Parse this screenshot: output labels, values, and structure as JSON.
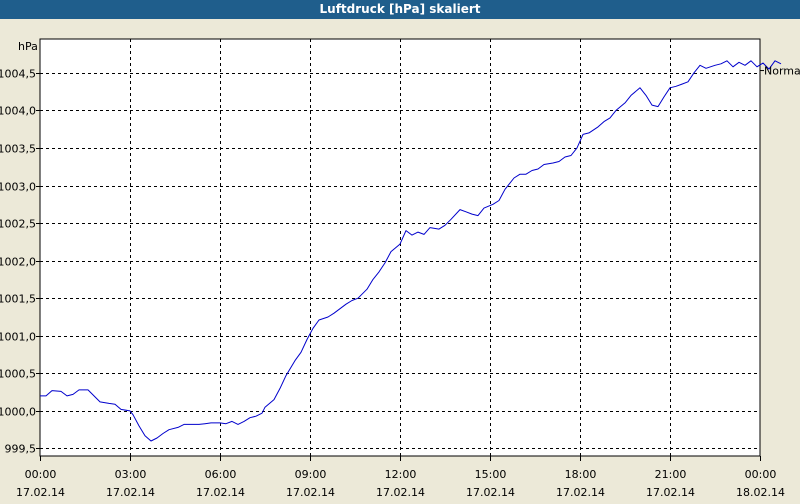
{
  "window": {
    "title": "Luftdruck [hPa] skaliert"
  },
  "colors": {
    "titlebar": "#1f5e8c",
    "line": "#0000cc",
    "grid": "#000000",
    "background": "#ece9d8"
  },
  "chart_data": {
    "type": "line",
    "title": "Luftdruck [hPa] skaliert",
    "ylabel": "hPa",
    "xlabel": "",
    "ylim": [
      999.4,
      1004.95
    ],
    "xlim": [
      0,
      24
    ],
    "grid": true,
    "y_ticks": [
      {
        "value": 999.5,
        "label": "999,5"
      },
      {
        "value": 1000.0,
        "label": "1000,0"
      },
      {
        "value": 1000.5,
        "label": "1000,5"
      },
      {
        "value": 1001.0,
        "label": "1001,0"
      },
      {
        "value": 1001.5,
        "label": "1001,5"
      },
      {
        "value": 1002.0,
        "label": "1002,0"
      },
      {
        "value": 1002.5,
        "label": "1002,5"
      },
      {
        "value": 1003.0,
        "label": "1003,0"
      },
      {
        "value": 1003.5,
        "label": "1003,5"
      },
      {
        "value": 1004.0,
        "label": "1004,0"
      },
      {
        "value": 1004.5,
        "label": "1004,5"
      }
    ],
    "x_ticks": [
      {
        "value": 0,
        "time": "00:00",
        "date": "17.02.14"
      },
      {
        "value": 3,
        "time": "03:00",
        "date": "17.02.14"
      },
      {
        "value": 6,
        "time": "06:00",
        "date": "17.02.14"
      },
      {
        "value": 9,
        "time": "09:00",
        "date": "17.02.14"
      },
      {
        "value": 12,
        "time": "12:00",
        "date": "17.02.14"
      },
      {
        "value": 15,
        "time": "15:00",
        "date": "17.02.14"
      },
      {
        "value": 18,
        "time": "18:00",
        "date": "17.02.14"
      },
      {
        "value": 21,
        "time": "21:00",
        "date": "17.02.14"
      },
      {
        "value": 24,
        "time": "00:00",
        "date": "18.02.14"
      }
    ],
    "series": [
      {
        "label": "Normal",
        "points": [
          [
            0.0,
            1000.2
          ],
          [
            0.2,
            1000.2
          ],
          [
            0.4,
            1000.27
          ],
          [
            0.7,
            1000.26
          ],
          [
            0.9,
            1000.2
          ],
          [
            1.1,
            1000.22
          ],
          [
            1.3,
            1000.28
          ],
          [
            1.6,
            1000.28
          ],
          [
            1.8,
            1000.2
          ],
          [
            2.0,
            1000.12
          ],
          [
            2.3,
            1000.1
          ],
          [
            2.5,
            1000.09
          ],
          [
            2.7,
            1000.02
          ],
          [
            3.0,
            1000.0
          ],
          [
            3.1,
            999.95
          ],
          [
            3.3,
            999.8
          ],
          [
            3.5,
            999.67
          ],
          [
            3.7,
            999.6
          ],
          [
            3.9,
            999.64
          ],
          [
            4.1,
            999.7
          ],
          [
            4.3,
            999.75
          ],
          [
            4.6,
            999.78
          ],
          [
            4.8,
            999.82
          ],
          [
            5.0,
            999.82
          ],
          [
            5.3,
            999.82
          ],
          [
            5.5,
            999.83
          ],
          [
            5.7,
            999.84
          ],
          [
            6.0,
            999.84
          ],
          [
            6.2,
            999.83
          ],
          [
            6.4,
            999.86
          ],
          [
            6.6,
            999.82
          ],
          [
            6.8,
            999.86
          ],
          [
            7.0,
            999.91
          ],
          [
            7.2,
            999.93
          ],
          [
            7.4,
            999.97
          ],
          [
            7.5,
            1000.05
          ],
          [
            7.8,
            1000.15
          ],
          [
            8.0,
            1000.3
          ],
          [
            8.2,
            1000.47
          ],
          [
            8.5,
            1000.67
          ],
          [
            8.7,
            1000.78
          ],
          [
            8.9,
            1000.95
          ],
          [
            9.1,
            1001.1
          ],
          [
            9.3,
            1001.21
          ],
          [
            9.6,
            1001.25
          ],
          [
            9.8,
            1001.3
          ],
          [
            10.0,
            1001.36
          ],
          [
            10.2,
            1001.42
          ],
          [
            10.4,
            1001.47
          ],
          [
            10.6,
            1001.5
          ],
          [
            10.9,
            1001.62
          ],
          [
            11.1,
            1001.75
          ],
          [
            11.3,
            1001.85
          ],
          [
            11.5,
            1001.97
          ],
          [
            11.7,
            1002.12
          ],
          [
            12.0,
            1002.22
          ],
          [
            12.2,
            1002.4
          ],
          [
            12.4,
            1002.34
          ],
          [
            12.6,
            1002.38
          ],
          [
            12.8,
            1002.35
          ],
          [
            13.0,
            1002.44
          ],
          [
            13.3,
            1002.42
          ],
          [
            13.5,
            1002.47
          ],
          [
            13.7,
            1002.55
          ],
          [
            14.0,
            1002.68
          ],
          [
            14.2,
            1002.65
          ],
          [
            14.4,
            1002.62
          ],
          [
            14.6,
            1002.6
          ],
          [
            14.8,
            1002.7
          ],
          [
            15.1,
            1002.75
          ],
          [
            15.3,
            1002.8
          ],
          [
            15.5,
            1002.95
          ],
          [
            15.8,
            1003.1
          ],
          [
            16.0,
            1003.15
          ],
          [
            16.2,
            1003.15
          ],
          [
            16.4,
            1003.2
          ],
          [
            16.6,
            1003.22
          ],
          [
            16.8,
            1003.28
          ],
          [
            17.1,
            1003.3
          ],
          [
            17.3,
            1003.32
          ],
          [
            17.5,
            1003.38
          ],
          [
            17.7,
            1003.4
          ],
          [
            17.9,
            1003.5
          ],
          [
            18.1,
            1003.68
          ],
          [
            18.3,
            1003.7
          ],
          [
            18.6,
            1003.78
          ],
          [
            18.8,
            1003.85
          ],
          [
            19.0,
            1003.9
          ],
          [
            19.2,
            1004.0
          ],
          [
            19.5,
            1004.1
          ],
          [
            19.7,
            1004.2
          ],
          [
            20.0,
            1004.3
          ],
          [
            20.2,
            1004.2
          ],
          [
            20.4,
            1004.07
          ],
          [
            20.6,
            1004.05
          ],
          [
            20.8,
            1004.18
          ],
          [
            21.0,
            1004.3
          ],
          [
            21.2,
            1004.32
          ],
          [
            21.4,
            1004.35
          ],
          [
            21.6,
            1004.38
          ],
          [
            21.8,
            1004.5
          ],
          [
            22.0,
            1004.6
          ],
          [
            22.2,
            1004.56
          ],
          [
            22.5,
            1004.6
          ],
          [
            22.7,
            1004.62
          ],
          [
            22.9,
            1004.66
          ],
          [
            23.1,
            1004.58
          ],
          [
            23.3,
            1004.64
          ],
          [
            23.5,
            1004.6
          ],
          [
            23.7,
            1004.66
          ],
          [
            23.9,
            1004.58
          ],
          [
            24.1,
            1004.63
          ],
          [
            24.3,
            1004.55
          ],
          [
            24.5,
            1004.66
          ],
          [
            24.7,
            1004.62
          ]
        ]
      }
    ]
  }
}
